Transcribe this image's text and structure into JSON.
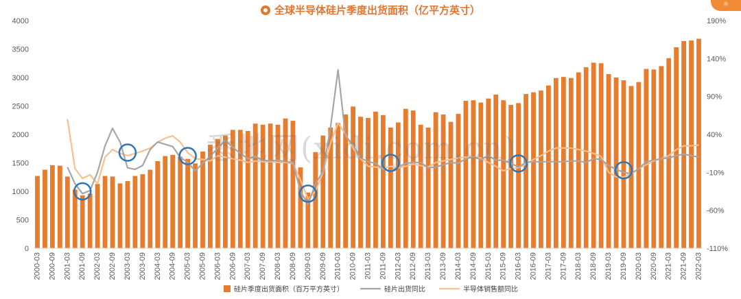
{
  "title": "全球半导体硅片季度出货面积（亿平方英寸）",
  "watermark": "悉地网(xidi.com.cn)",
  "accent_colors": {
    "bars": "#e67c2e",
    "shipment_yoy": "#a6a6a6",
    "sales_yoy": "#f9bf8f",
    "circles": "#2e75b6",
    "badge": "#f08a34"
  },
  "chart_data": {
    "type": "bar",
    "title": "全球半导体硅片季度出货面积（亿平方英寸）",
    "xlabel": "",
    "ylabel": "",
    "ylim": [
      0,
      4000
    ],
    "y2lim": [
      -110,
      190
    ],
    "yticks": [
      "0",
      "500",
      "1000",
      "1500",
      "2000",
      "2500",
      "3000",
      "3500",
      "4000"
    ],
    "y2ticks": [
      "-110%",
      "-60%",
      "-10%",
      "40%",
      "90%",
      "140%",
      "190%"
    ],
    "categories": [
      "2000-03",
      "2000-06",
      "2000-09",
      "2000-12",
      "2001-03",
      "2001-06",
      "2001-09",
      "2001-12",
      "2002-03",
      "2002-06",
      "2002-09",
      "2002-12",
      "2003-03",
      "2003-06",
      "2003-09",
      "2003-12",
      "2004-03",
      "2004-06",
      "2004-09",
      "2004-12",
      "2005-03",
      "2005-06",
      "2005-09",
      "2005-12",
      "2006-03",
      "2006-06",
      "2006-09",
      "2006-12",
      "2007-03",
      "2007-06",
      "2007-09",
      "2007-12",
      "2008-03",
      "2008-06",
      "2008-09",
      "2008-12",
      "2009-03",
      "2009-06",
      "2009-09",
      "2009-12",
      "2010-03",
      "2010-06",
      "2010-09",
      "2010-12",
      "2011-03",
      "2011-06",
      "2011-09",
      "2011-12",
      "2012-03",
      "2012-06",
      "2012-09",
      "2012-12",
      "2013-03",
      "2013-06",
      "2013-09",
      "2013-12",
      "2014-03",
      "2014-06",
      "2014-09",
      "2014-12",
      "2015-03",
      "2015-06",
      "2015-09",
      "2015-12",
      "2016-03",
      "2016-06",
      "2016-09",
      "2016-12",
      "2017-03",
      "2017-06",
      "2017-09",
      "2017-12",
      "2018-03",
      "2018-06",
      "2018-09",
      "2018-12",
      "2019-03",
      "2019-06",
      "2019-09",
      "2019-12",
      "2020-03",
      "2020-06",
      "2020-09",
      "2020-12",
      "2021-03",
      "2021-06",
      "2021-09",
      "2021-12",
      "2022-03"
    ],
    "x_tick_labels": [
      "2000-03",
      "2000-09",
      "2001-03",
      "2001-09",
      "2002-03",
      "2002-09",
      "2003-03",
      "2003-09",
      "2004-03",
      "2004-09",
      "2005-03",
      "2005-09",
      "2006-03",
      "2006-09",
      "2007-03",
      "2007-09",
      "2008-03",
      "2008-09",
      "2009-03",
      "2009-09",
      "2010-03",
      "2010-09",
      "2011-03",
      "2011-09",
      "2012-03",
      "2012-09",
      "2013-03",
      "2013-09",
      "2014-03",
      "2014-09",
      "2015-03",
      "2015-09",
      "2016-03",
      "2016-09",
      "2017-03",
      "2017-09",
      "2018-03",
      "2018-09",
      "2019-03",
      "2019-09",
      "2020-03",
      "2020-09",
      "2021-03",
      "2021-09",
      "2022-03"
    ],
    "series": [
      {
        "name": "硅片季度出货面积（百万平方英寸）",
        "axis": "left",
        "kind": "bar",
        "values": [
          1270,
          1380,
          1460,
          1450,
          1260,
          1030,
          930,
          960,
          1130,
          1270,
          1260,
          1140,
          1180,
          1270,
          1300,
          1380,
          1530,
          1620,
          1640,
          1610,
          1570,
          1490,
          1700,
          1820,
          1920,
          1980,
          2080,
          2080,
          2060,
          2190,
          2170,
          2190,
          2170,
          2280,
          2240,
          1420,
          980,
          1690,
          1980,
          2120,
          2200,
          2350,
          2490,
          2310,
          2290,
          2400,
          2340,
          2120,
          2210,
          2450,
          2420,
          2170,
          2120,
          2390,
          2350,
          2220,
          2360,
          2590,
          2600,
          2560,
          2630,
          2700,
          2600,
          2520,
          2550,
          2710,
          2740,
          2770,
          2860,
          2990,
          3010,
          2990,
          3090,
          3180,
          3260,
          3250,
          3060,
          3000,
          2950,
          2850,
          2920,
          3150,
          3140,
          3200,
          3340,
          3530,
          3640,
          3650,
          3680
        ]
      },
      {
        "name": "硅片出货同比",
        "axis": "right",
        "kind": "line",
        "values": [
          null,
          null,
          null,
          null,
          -3,
          -25,
          -38,
          -34,
          -10,
          25,
          48,
          30,
          -4,
          -6,
          -1,
          20,
          30,
          27,
          24,
          10,
          3,
          -8,
          2,
          11,
          22,
          32,
          23,
          15,
          8,
          11,
          6,
          5,
          6,
          4,
          3,
          -35,
          -52,
          -25,
          -9,
          49,
          125,
          38,
          26,
          9,
          4,
          2,
          -6,
          -8,
          -3,
          2,
          3,
          3,
          -4,
          -3,
          0,
          3,
          2,
          8,
          10,
          7,
          12,
          6,
          6,
          2,
          -3,
          3,
          4,
          4,
          4,
          4,
          4,
          5,
          5,
          3,
          8,
          7,
          -1,
          -6,
          -10,
          -12,
          -5,
          4,
          6,
          8,
          9,
          12,
          14,
          12,
          10
        ]
      },
      {
        "name": "半导体销售额同比",
        "axis": "right",
        "kind": "line",
        "values": [
          null,
          null,
          null,
          null,
          60,
          -5,
          -18,
          -13,
          -25,
          10,
          20,
          15,
          12,
          15,
          18,
          22,
          30,
          35,
          38,
          30,
          16,
          8,
          7,
          5,
          12,
          10,
          8,
          6,
          3,
          5,
          4,
          4,
          3,
          3,
          2,
          -20,
          -45,
          -35,
          -10,
          28,
          55,
          40,
          22,
          8,
          -2,
          -3,
          -5,
          -2,
          -4,
          -2,
          1,
          -1,
          -3,
          3,
          5,
          7,
          9,
          10,
          10,
          9,
          3,
          -2,
          -8,
          -5,
          -4,
          1,
          7,
          12,
          18,
          22,
          22,
          22,
          20,
          18,
          15,
          11,
          -10,
          -16,
          -16,
          -12,
          -5,
          0,
          5,
          8,
          12,
          20,
          25,
          25,
          26
        ]
      }
    ],
    "highlight_markers": [
      {
        "category": "2001-09",
        "axis": "left",
        "value": 1000
      },
      {
        "category": "2003-03",
        "axis": "left",
        "value": 1680
      },
      {
        "category": "2005-03",
        "axis": "left",
        "value": 1620
      },
      {
        "category": "2009-03",
        "axis": "left",
        "value": 960
      },
      {
        "category": "2011-12",
        "axis": "left",
        "value": 1500
      },
      {
        "category": "2016-03",
        "axis": "left",
        "value": 1490
      },
      {
        "category": "2019-09",
        "axis": "left",
        "value": 1370
      }
    ],
    "legend": {
      "placement": "bottom",
      "entries": [
        "硅片季度出货面积（百万平方英寸）",
        "硅片出货同比",
        "半导体销售额同比"
      ]
    },
    "grid": false
  }
}
